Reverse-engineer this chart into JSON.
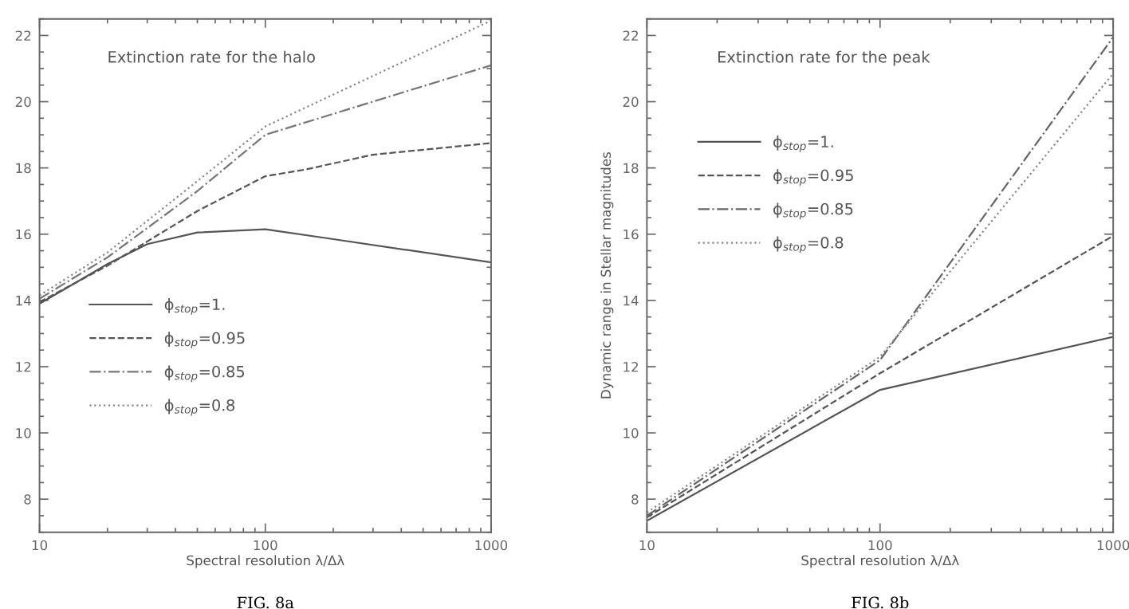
{
  "chart_data": [
    {
      "type": "line",
      "xlabel": "Spectral resolution λ/Δλ",
      "annotations": [
        "Extinction rate for the halo",
        "FIG. 8a"
      ],
      "legend": "bottom left",
      "log": "x",
      "xlim": [
        10,
        1000
      ],
      "xticks": [
        10,
        100,
        1000
      ],
      "ylim": [
        7,
        22.5
      ],
      "yticks": [
        8,
        10,
        12,
        14,
        16,
        18,
        20,
        22
      ],
      "series": [
        {
          "name": "ϕ$_{stop}$=1.",
          "color": "#555555",
          "line_style": "solid",
          "x": [
            10,
            15,
            20,
            30,
            50,
            100,
            200,
            1000
          ],
          "values": [
            13.9,
            14.6,
            15.1,
            15.7,
            16.05,
            16.15,
            15.85,
            15.15
          ]
        },
        {
          "name": "ϕ$_{stop}$=0.95",
          "color": "#555555",
          "line_style": "dashed",
          "x": [
            10,
            20,
            50,
            100,
            150,
            300,
            1000
          ],
          "values": [
            13.95,
            15.05,
            16.7,
            17.75,
            17.95,
            18.4,
            18.75
          ]
        },
        {
          "name": "ϕ$_{stop}$=0.85",
          "color": "#777777",
          "line_style": "dashdot",
          "x": [
            10,
            20,
            50,
            100,
            1000
          ],
          "values": [
            14.05,
            15.3,
            17.3,
            19.0,
            21.1
          ]
        },
        {
          "name": "ϕ$_{stop}$=0.8",
          "color": "#888888",
          "line_style": "dotted",
          "x": [
            10,
            20,
            50,
            100,
            1000
          ],
          "values": [
            14.15,
            15.45,
            17.6,
            19.25,
            22.45
          ]
        }
      ]
    },
    {
      "type": "line",
      "xlabel": "Spectral resolution λ/Δλ",
      "ylabel": "Dynamic range in Stellar magnitudes",
      "annotations": [
        "Extinction rate for the peak",
        "FIG. 8b"
      ],
      "legend": "top left",
      "log": "x",
      "xlim": [
        10,
        1000
      ],
      "xticks": [
        10,
        100,
        1000
      ],
      "ylim": [
        7,
        22.5
      ],
      "yticks": [
        8,
        10,
        12,
        14,
        16,
        18,
        20,
        22
      ],
      "series": [
        {
          "name": "ϕ$_{stop}$=1.",
          "color": "#555555",
          "line_style": "solid",
          "x": [
            10,
            100,
            1000
          ],
          "values": [
            7.35,
            11.3,
            12.9
          ]
        },
        {
          "name": "ϕ$_{stop}$=0.95",
          "color": "#555555",
          "line_style": "dashed",
          "x": [
            10,
            100,
            1000
          ],
          "values": [
            7.45,
            11.8,
            15.95
          ]
        },
        {
          "name": "ϕ$_{stop}$=0.85",
          "color": "#666666",
          "line_style": "dashdot",
          "x": [
            10,
            100,
            1000
          ],
          "values": [
            7.5,
            12.2,
            21.95
          ]
        },
        {
          "name": "ϕ$_{stop}$=0.8",
          "color": "#888888",
          "line_style": "dotted",
          "x": [
            10,
            100,
            1000
          ],
          "values": [
            7.6,
            12.3,
            20.85
          ]
        }
      ]
    }
  ]
}
